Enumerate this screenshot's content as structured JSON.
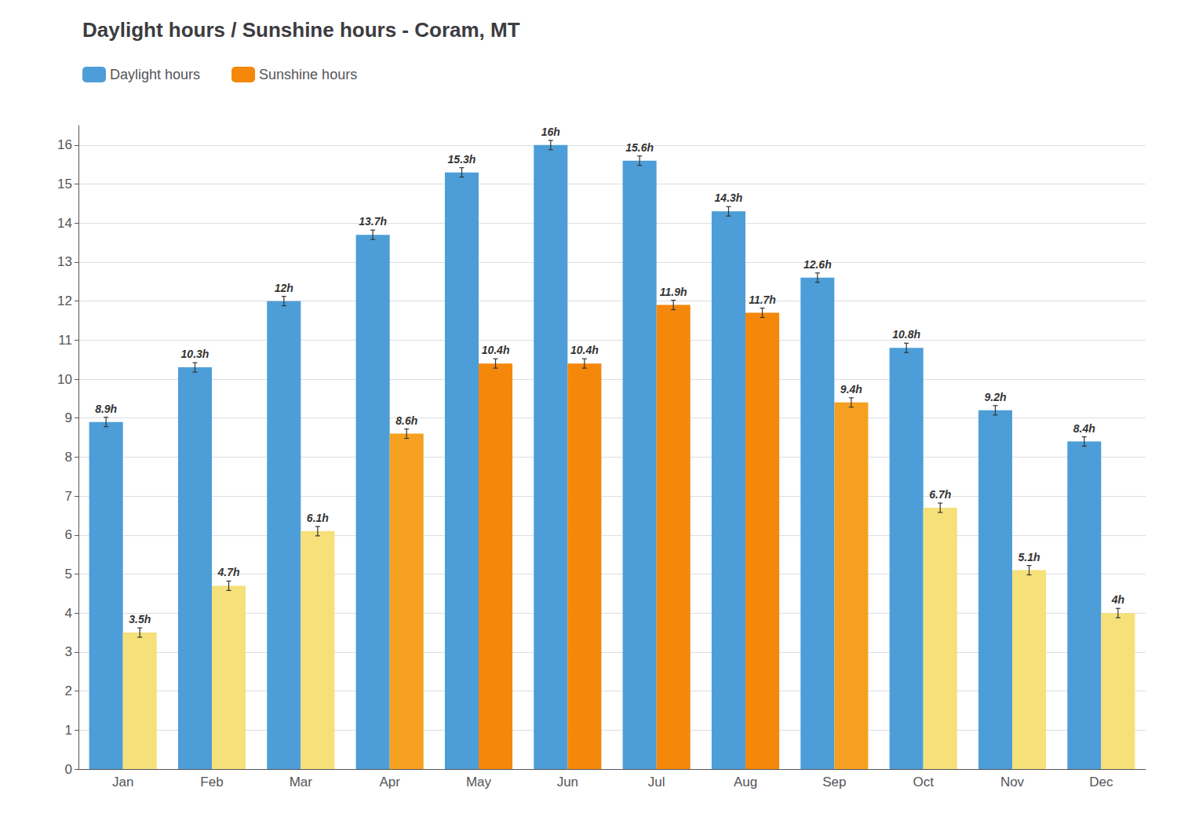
{
  "chart_data": {
    "type": "bar",
    "title": "Daylight hours / Sunshine hours - Coram, MT",
    "categories": [
      "Jan",
      "Feb",
      "Mar",
      "Apr",
      "May",
      "Jun",
      "Jul",
      "Aug",
      "Sep",
      "Oct",
      "Nov",
      "Dec"
    ],
    "series": [
      {
        "name": "Daylight hours",
        "color": "#4d9ed8",
        "values": [
          8.9,
          10.3,
          12.0,
          13.7,
          15.3,
          16.0,
          15.6,
          14.3,
          12.6,
          10.8,
          9.2,
          8.4
        ],
        "value_labels": [
          "8.9h",
          "10.3h",
          "12h",
          "13.7h",
          "15.3h",
          "16h",
          "15.6h",
          "14.3h",
          "12.6h",
          "10.8h",
          "9.2h",
          "8.4h"
        ],
        "errors": [
          0.12,
          0.12,
          0.12,
          0.12,
          0.12,
          0.12,
          0.12,
          0.12,
          0.12,
          0.12,
          0.12,
          0.12
        ]
      },
      {
        "name": "Sunshine hours",
        "color": "#f5870a",
        "colors": [
          "#f5e07a",
          "#f5e07a",
          "#f5e07a",
          "#f5a020",
          "#f5870a",
          "#f5870a",
          "#f5870a",
          "#f5870a",
          "#f5a020",
          "#f5e07a",
          "#f5e07a",
          "#f5e07a"
        ],
        "values": [
          3.5,
          4.7,
          6.1,
          8.6,
          10.4,
          10.4,
          11.9,
          11.7,
          9.4,
          6.7,
          5.1,
          4.0
        ],
        "value_labels": [
          "3.5h",
          "4.7h",
          "6.1h",
          "8.6h",
          "10.4h",
          "10.4h",
          "11.9h",
          "11.7h",
          "9.4h",
          "6.7h",
          "5.1h",
          "4h"
        ],
        "errors": [
          0.12,
          0.12,
          0.12,
          0.12,
          0.12,
          0.12,
          0.12,
          0.12,
          0.12,
          0.12,
          0.12,
          0.12
        ]
      }
    ],
    "ylim": [
      0,
      16.5
    ],
    "yticks": [
      0,
      1,
      2,
      3,
      4,
      5,
      6,
      7,
      8,
      9,
      10,
      11,
      12,
      13,
      14,
      15,
      16
    ],
    "grid": true,
    "legend": "upper left",
    "data_labels": true
  }
}
